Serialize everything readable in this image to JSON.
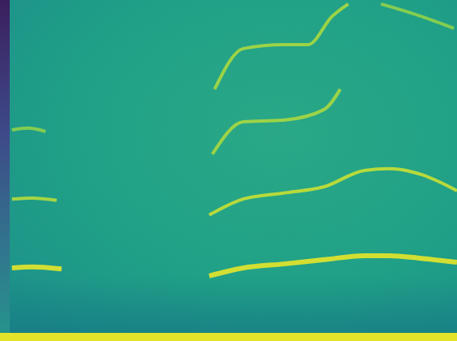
{
  "chart_data": {
    "type": "line",
    "xlim": [
      0,
      100
    ],
    "ylim": [
      0,
      100
    ],
    "grid": false,
    "tick_labels": false,
    "series": [
      {
        "color": "#e6e629",
        "x": [
          0.5,
          5,
          11.6
        ],
        "values": [
          19.5,
          19.8,
          19.2
        ]
      },
      {
        "color": "#b5dc3c",
        "x": [
          0.5,
          5,
          10.5
        ],
        "values": [
          40.2,
          40.5,
          39.8
        ]
      },
      {
        "color": "#8fd14a",
        "x": [
          0.5,
          4,
          8
        ],
        "values": [
          61,
          61.5,
          60.5
        ]
      },
      {
        "color": "#e6e629",
        "x": [
          44.6,
          52.2,
          61.2,
          70.3,
          79.3,
          84.8,
          92,
          100
        ],
        "values": [
          17.1,
          19.5,
          20.7,
          22,
          23.2,
          23.2,
          22.4,
          21.2
        ]
      },
      {
        "color": "#c8e034",
        "x": [
          44.6,
          52.2,
          61.2,
          70.3,
          79.3,
          84.8,
          92,
          100
        ],
        "values": [
          35.4,
          40.2,
          42,
          43.9,
          48.8,
          49.3,
          47.6,
          42.7
        ]
      },
      {
        "color": "#a8d840",
        "x": [
          45.3,
          52.2,
          61.2,
          70.3,
          73.9
        ],
        "values": [
          53.7,
          63.4,
          63.9,
          67.1,
          73.2
        ]
      },
      {
        "color": "#a8d840",
        "x": [
          45.8,
          52.2,
          61.2,
          66.7,
          72.1,
          75.7
        ],
        "values": [
          73.2,
          85.4,
          86.6,
          86.6,
          95.1,
          98.8
        ]
      },
      {
        "color": "#8fd14a",
        "x": [
          83,
          92,
          99.3
        ],
        "values": [
          98.8,
          95.1,
          91.5
        ]
      }
    ]
  }
}
